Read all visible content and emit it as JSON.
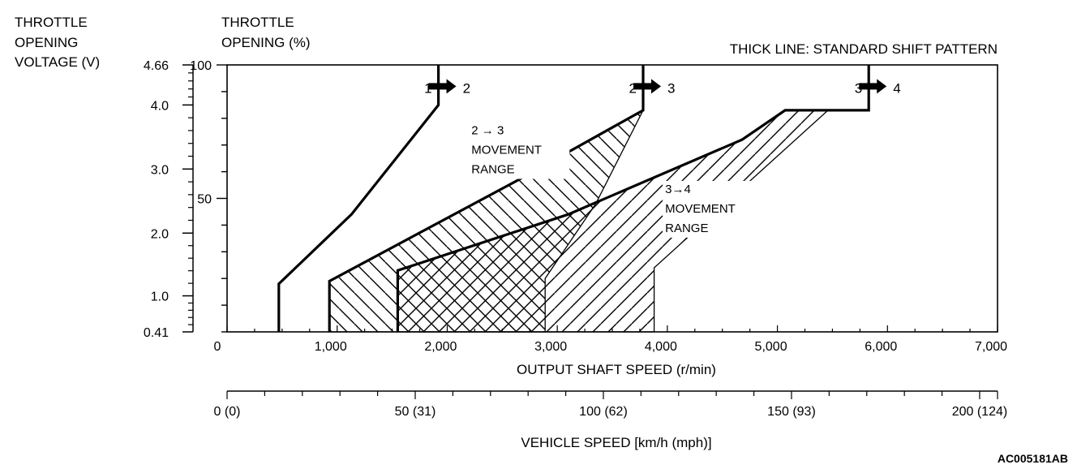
{
  "chart_data": {
    "type": "line",
    "title": "THICK LINE: STANDARD SHIFT PATTERN",
    "xlabel": "OUTPUT SHAFT SPEED (r/min)",
    "xlim": [
      0,
      7000
    ],
    "x_ticks": [
      0,
      1000,
      2000,
      3000,
      4000,
      5000,
      6000,
      7000
    ],
    "x_tick_labels": [
      "0",
      "1,000",
      "2,000",
      "3,000",
      "4,000",
      "5,000",
      "6,000",
      "7,000"
    ],
    "y_left_outer_label": [
      "THROTTLE",
      "OPENING",
      "VOLTAGE (V)"
    ],
    "y_left_inner_label": [
      "THROTTLE",
      "OPENING (%)"
    ],
    "ylim": [
      0,
      100
    ],
    "y_percent_ticks": [
      50,
      100
    ],
    "y_percent_tick_labels": [
      "50",
      "100"
    ],
    "y_voltage_ticks": [
      {
        "label": "4.66",
        "throttle": 100
      },
      {
        "label": "4.0",
        "throttle": 85
      },
      {
        "label": "3.0",
        "throttle": 61
      },
      {
        "label": "2.0",
        "throttle": 37
      },
      {
        "label": "1.0",
        "throttle": 13.5
      },
      {
        "label": "0.41",
        "throttle": 0
      }
    ],
    "secondary_x_axis": {
      "label": "VEHICLE SPEED [km/h (mph)]",
      "kmh_per_rpm": 0.02925,
      "ticks_kmh": [
        0,
        50,
        100,
        150,
        200
      ],
      "tick_labels": [
        "0 (0)",
        "50 (31)",
        "100 (62)",
        "150 (93)",
        "200 (124)"
      ]
    },
    "series": [
      {
        "name": "1 → 2",
        "style": "thick",
        "points": [
          [
            470,
            0
          ],
          [
            470,
            18
          ],
          [
            1130,
            44
          ],
          [
            1920,
            85
          ],
          [
            1920,
            100
          ]
        ]
      },
      {
        "name": "2 → 3",
        "style": "thick",
        "points": [
          [
            930,
            0
          ],
          [
            930,
            19
          ],
          [
            2650,
            57
          ],
          [
            3780,
            83
          ],
          [
            3780,
            100
          ]
        ]
      },
      {
        "name": "3 → 4",
        "style": "thick",
        "points": [
          [
            1550,
            0
          ],
          [
            1550,
            23
          ],
          [
            3100,
            44
          ],
          [
            4680,
            72
          ],
          [
            5070,
            83
          ],
          [
            5830,
            83
          ],
          [
            5830,
            100
          ]
        ]
      }
    ],
    "ranges": [
      {
        "name": "2 → 3 MOVEMENT RANGE",
        "polygon": [
          [
            930,
            0
          ],
          [
            930,
            19
          ],
          [
            2650,
            57
          ],
          [
            3780,
            83
          ],
          [
            3350,
            48
          ],
          [
            2890,
            20
          ],
          [
            2890,
            0
          ]
        ]
      },
      {
        "name": "3 → 4 MOVEMENT RANGE",
        "polygon": [
          [
            1550,
            0
          ],
          [
            1550,
            23
          ],
          [
            3100,
            44
          ],
          [
            4680,
            72
          ],
          [
            5070,
            83
          ],
          [
            5460,
            83
          ],
          [
            3880,
            24
          ],
          [
            3880,
            0
          ]
        ]
      }
    ],
    "shift_arrows": [
      {
        "from": "1",
        "to": "2",
        "rpm": 1920,
        "throttle": 92
      },
      {
        "from": "2",
        "to": "3",
        "rpm": 3780,
        "throttle": 92
      },
      {
        "from": "3",
        "to": "4",
        "rpm": 5830,
        "throttle": 92
      }
    ],
    "annotations": [
      {
        "lines": [
          "2 → 3",
          "MOVEMENT",
          "RANGE"
        ],
        "rpm": 2220,
        "throttle": 74
      },
      {
        "lines": [
          "3→4",
          "MOVEMENT",
          "RANGE"
        ],
        "rpm": 3980,
        "throttle": 52
      }
    ],
    "figure_id": "AC005181AB"
  }
}
